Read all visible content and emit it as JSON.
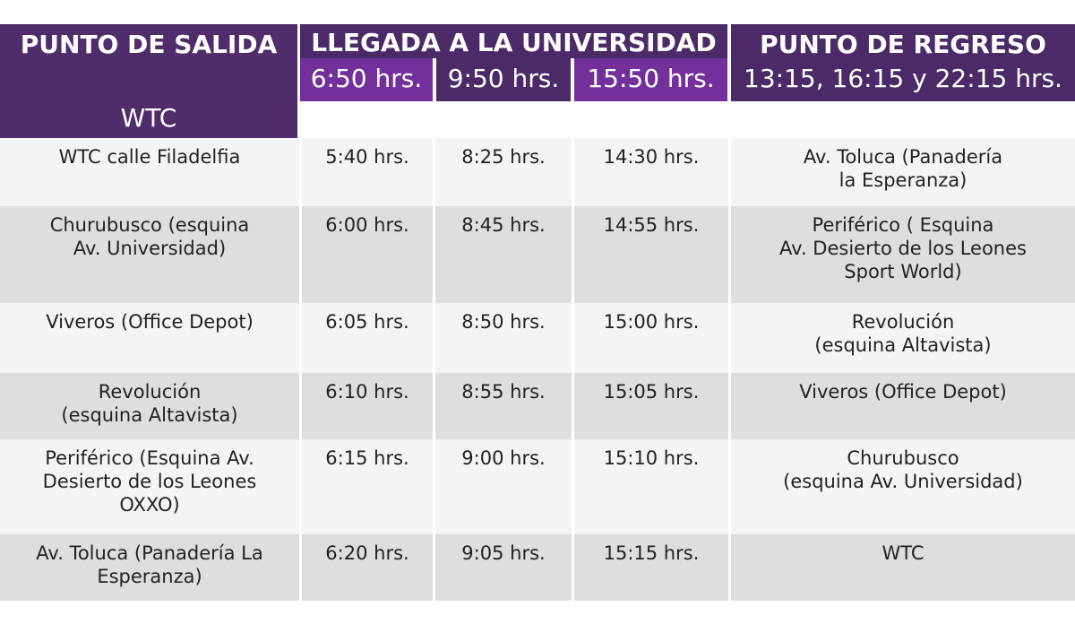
{
  "header": {
    "salida_title": "PUNTO DE SALIDA",
    "salida_sub": "WTC",
    "llegada_title": "LLEGADA A LA UNIVERSIDAD",
    "llegada_times": [
      "6:50 hrs.",
      "9:50 hrs.",
      "15:50 hrs."
    ],
    "regreso_title": "PUNTO DE REGRESO",
    "regreso_times": "13:15, 16:15 y 22:15 hrs."
  },
  "rows": [
    {
      "salida": "WTC calle Filadelfia",
      "t1": "5:40 hrs.",
      "t2": "8:25 hrs.",
      "t3": "14:30 hrs.",
      "regreso": "Av. Toluca (Panadería\nla Esperanza)"
    },
    {
      "salida": "Churubusco (esquina\nAv. Universidad)",
      "t1": "6:00 hrs.",
      "t2": "8:45 hrs.",
      "t3": "14:55 hrs.",
      "regreso": "Periférico ( Esquina\nAv. Desierto de los Leones\nSport World)"
    },
    {
      "salida": "Viveros (Office Depot)",
      "t1": "6:05 hrs.",
      "t2": "8:50 hrs.",
      "t3": "15:00 hrs.",
      "regreso": "Revolución\n(esquina Altavista)"
    },
    {
      "salida": "Revolución\n(esquina  Altavista)",
      "t1": "6:10 hrs.",
      "t2": "8:55 hrs.",
      "t3": "15:05 hrs.",
      "regreso": "Viveros (Office Depot)"
    },
    {
      "salida": "Periférico (Esquina Av.\nDesierto de los Leones\nOXXO)",
      "t1": "6:15 hrs.",
      "t2": "9:00 hrs.",
      "t3": "15:10 hrs.",
      "regreso": "Churubusco\n(esquina Av. Universidad)"
    },
    {
      "salida": "Av. Toluca (Panadería La\nEsperanza)",
      "t1": "6:20 hrs.",
      "t2": "9:05 hrs.",
      "t3": "15:15 hrs.",
      "regreso": "WTC"
    }
  ]
}
